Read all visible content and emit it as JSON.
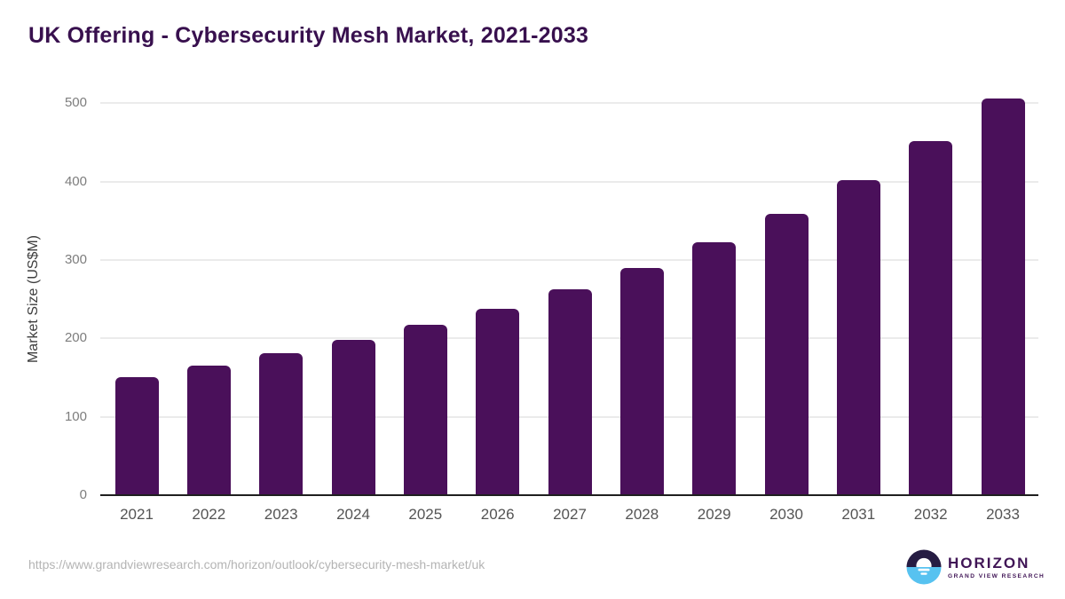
{
  "title": "UK Offering - Cybersecurity Mesh Market, 2021-2033",
  "footer": {
    "source_url": "https://www.grandviewresearch.com/horizon/outlook/cybersecurity-mesh-market/uk",
    "logo": {
      "name": "HORIZON",
      "subtitle": "GRAND VIEW RESEARCH"
    }
  },
  "colors": {
    "bar": "#4A105A",
    "title_text": "#38104E",
    "gridline": "#ebebeb",
    "axis_line": "#1f1f1f",
    "y_tick_text": "#7d7d7d",
    "x_tick_text": "#545454",
    "axis_title_text": "#3d3d3d",
    "url_text": "#b4b4b4",
    "logo_dark": "#261C43",
    "logo_blue": "#57C2F0",
    "logo_text": "#401556"
  },
  "chart_data": {
    "type": "bar",
    "title": "UK Offering - Cybersecurity Mesh Market, 2021-2033",
    "categories": [
      "2021",
      "2022",
      "2023",
      "2024",
      "2025",
      "2026",
      "2027",
      "2028",
      "2029",
      "2030",
      "2031",
      "2032",
      "2033"
    ],
    "values": [
      150,
      164,
      180,
      197,
      216,
      237,
      261,
      289,
      321,
      358,
      401,
      450,
      505
    ],
    "xlabel": "",
    "ylabel": "Market Size (US$M)",
    "ylim": [
      0,
      500
    ],
    "ytick_step": 100,
    "yticks": [
      0,
      100,
      200,
      300,
      400,
      500
    ],
    "grid": true,
    "legend": false,
    "bar_corner_radius": "rounded-top"
  }
}
